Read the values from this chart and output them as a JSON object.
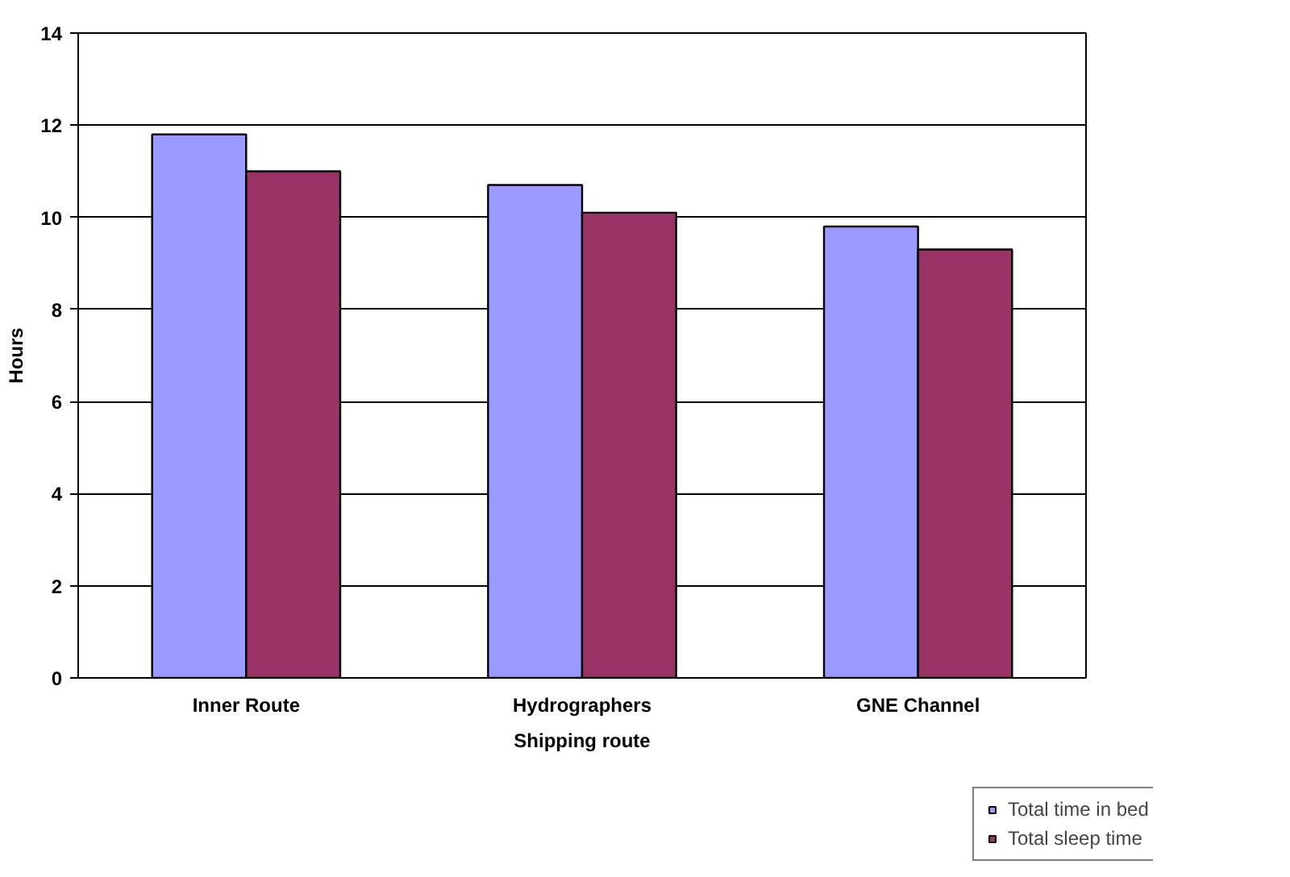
{
  "chart_data": {
    "type": "bar",
    "xlabel": "Shipping route",
    "ylabel": "Hours",
    "categories": [
      "Inner Route",
      "Hydrographers",
      "GNE Channel"
    ],
    "series": [
      {
        "name": "Total time in bed",
        "color": "#9999ff",
        "values": [
          11.8,
          10.7,
          9.8
        ]
      },
      {
        "name": "Total sleep time",
        "color": "#993366",
        "values": [
          11.0,
          10.1,
          9.3
        ]
      }
    ],
    "ylim": [
      0,
      14
    ],
    "yticks": [
      0,
      2,
      4,
      6,
      8,
      10,
      12,
      14
    ],
    "grid": "y",
    "legend": "bottom right"
  }
}
